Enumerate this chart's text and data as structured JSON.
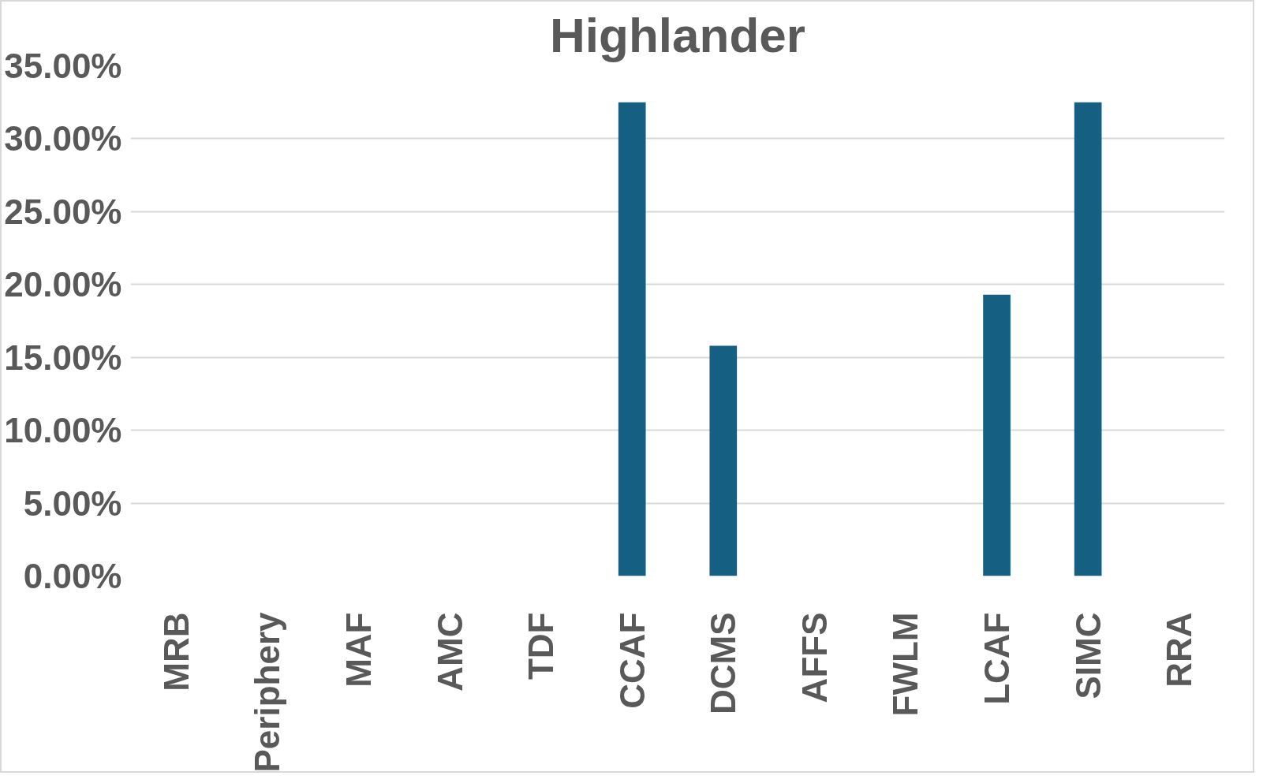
{
  "chart_data": {
    "type": "bar",
    "title": "Highlander",
    "categories": [
      "MRB",
      "Periphery",
      "MAF",
      "AMC",
      "TDF",
      "CCAF",
      "DCMS",
      "AFFS",
      "FWLM",
      "LCAF",
      "SIMC",
      "RRA"
    ],
    "values": [
      0,
      0,
      0,
      0,
      0,
      32.5,
      15.8,
      0,
      0,
      19.3,
      32.5,
      0
    ],
    "color": "#156082",
    "ylim": [
      0,
      35
    ],
    "yticks": [
      {
        "value": 0,
        "label": "0.00%"
      },
      {
        "value": 5,
        "label": "5.00%"
      },
      {
        "value": 10,
        "label": "10.00%"
      },
      {
        "value": 15,
        "label": "15.00%"
      },
      {
        "value": 20,
        "label": "20.00%"
      },
      {
        "value": 25,
        "label": "25.00%"
      },
      {
        "value": 30,
        "label": "30.00%"
      },
      {
        "value": 35,
        "label": "35.00%"
      }
    ],
    "grid": "y"
  }
}
